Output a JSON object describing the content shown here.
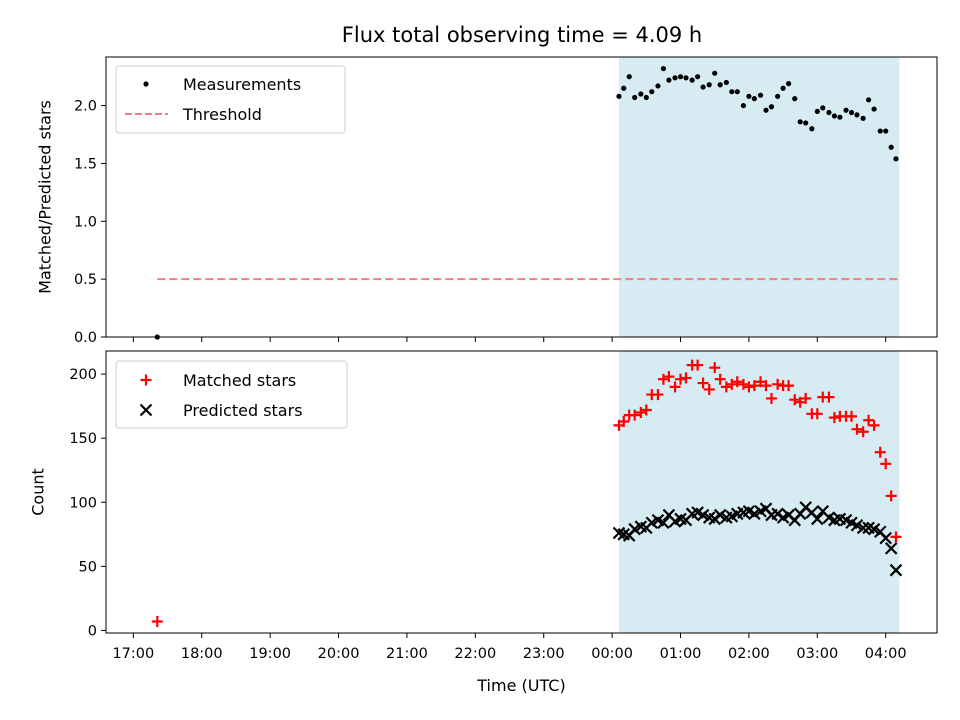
{
  "chart_data": [
    {
      "type": "scatter",
      "title": "Flux total observing time = 4.09 h",
      "xlabel": "",
      "ylabel": "Matched/Predicted stars",
      "ylim": [
        0,
        2.42
      ],
      "yticks": [
        0.0,
        0.5,
        1.0,
        1.5,
        2.0
      ],
      "ytick_labels": [
        "0.0",
        "0.5",
        "1.0",
        "1.5",
        "2.0"
      ],
      "legend_position": "top-left",
      "observing_window": [
        24.1,
        28.2
      ],
      "series": [
        {
          "name": "Measurements",
          "kind": "points",
          "color": "#000000",
          "x": [
            17.35,
            24.1,
            24.17,
            24.25,
            24.33,
            24.42,
            24.5,
            24.58,
            24.67,
            24.75,
            24.83,
            24.92,
            25.0,
            25.08,
            25.17,
            25.25,
            25.33,
            25.42,
            25.5,
            25.58,
            25.67,
            25.75,
            25.83,
            25.92,
            26.0,
            26.08,
            26.17,
            26.25,
            26.33,
            26.42,
            26.5,
            26.58,
            26.67,
            26.75,
            26.83,
            26.92,
            27.0,
            27.08,
            27.17,
            27.25,
            27.33,
            27.42,
            27.5,
            27.58,
            27.67,
            27.75,
            27.83,
            27.92,
            28.0,
            28.08,
            28.15
          ],
          "y": [
            0.0,
            2.08,
            2.15,
            2.25,
            2.07,
            2.1,
            2.07,
            2.12,
            2.17,
            2.32,
            2.22,
            2.24,
            2.25,
            2.24,
            2.22,
            2.25,
            2.16,
            2.18,
            2.28,
            2.18,
            2.2,
            2.12,
            2.12,
            2.0,
            2.08,
            2.06,
            2.09,
            1.96,
            1.99,
            2.08,
            2.15,
            2.19,
            2.06,
            1.86,
            1.85,
            1.8,
            1.95,
            1.98,
            1.94,
            1.91,
            1.9,
            1.96,
            1.94,
            1.92,
            1.89,
            2.05,
            1.97,
            1.78,
            1.78,
            1.64,
            1.54
          ]
        },
        {
          "name": "Threshold",
          "kind": "dashed-line",
          "color": "#f08080",
          "x": [
            17.35,
            28.2
          ],
          "y": [
            0.5,
            0.5
          ]
        }
      ]
    },
    {
      "type": "scatter",
      "title": "",
      "xlabel": "Time (UTC)",
      "ylabel": "Count",
      "ylim": [
        -2,
        218
      ],
      "yticks": [
        0,
        50,
        100,
        150,
        200
      ],
      "ytick_labels": [
        "0",
        "50",
        "100",
        "150",
        "200"
      ],
      "xlim": [
        16.6,
        28.75
      ],
      "xticks": [
        17,
        18,
        19,
        20,
        21,
        22,
        23,
        24,
        25,
        26,
        27,
        28
      ],
      "xtick_labels": [
        "17:00",
        "18:00",
        "19:00",
        "20:00",
        "21:00",
        "22:00",
        "23:00",
        "00:00",
        "01:00",
        "02:00",
        "03:00",
        "04:00"
      ],
      "legend_position": "top-left",
      "observing_window": [
        24.1,
        28.2
      ],
      "series": [
        {
          "name": "Matched stars",
          "kind": "plus",
          "color": "#ff0000",
          "x": [
            17.35,
            24.1,
            24.17,
            24.25,
            24.33,
            24.42,
            24.5,
            24.58,
            24.67,
            24.75,
            24.83,
            24.92,
            25.0,
            25.08,
            25.17,
            25.25,
            25.33,
            25.42,
            25.5,
            25.58,
            25.67,
            25.75,
            25.83,
            25.92,
            26.0,
            26.08,
            26.17,
            26.25,
            26.33,
            26.42,
            26.5,
            26.58,
            26.67,
            26.75,
            26.83,
            26.92,
            27.0,
            27.08,
            27.17,
            27.25,
            27.33,
            27.42,
            27.5,
            27.58,
            27.67,
            27.75,
            27.83,
            27.92,
            28.0,
            28.08,
            28.15
          ],
          "y": [
            7,
            160,
            163,
            168,
            168,
            170,
            172,
            184,
            184,
            196,
            198,
            190,
            196,
            197,
            207,
            207,
            193,
            188,
            205,
            196,
            190,
            192,
            194,
            192,
            190,
            191,
            194,
            191,
            181,
            192,
            191,
            191,
            180,
            178,
            181,
            169,
            169,
            182,
            182,
            166,
            167,
            167,
            167,
            157,
            155,
            164,
            160,
            139,
            130,
            105,
            73
          ]
        },
        {
          "name": "Predicted stars",
          "kind": "cross",
          "color": "#000000",
          "x": [
            24.1,
            24.17,
            24.25,
            24.33,
            24.42,
            24.5,
            24.58,
            24.67,
            24.75,
            24.83,
            24.92,
            25.0,
            25.08,
            25.17,
            25.25,
            25.33,
            25.42,
            25.5,
            25.58,
            25.67,
            25.75,
            25.83,
            25.92,
            26.0,
            26.08,
            26.17,
            26.25,
            26.33,
            26.42,
            26.5,
            26.58,
            26.67,
            26.75,
            26.83,
            26.92,
            27.0,
            27.08,
            27.17,
            27.25,
            27.33,
            27.42,
            27.5,
            27.58,
            27.67,
            27.75,
            27.83,
            27.92,
            28.0,
            28.08,
            28.15
          ],
          "y": [
            76,
            75,
            74,
            79,
            81,
            80,
            84,
            86,
            84,
            90,
            85,
            87,
            86,
            91,
            92,
            90,
            88,
            87,
            90,
            88,
            89,
            91,
            92,
            93,
            91,
            93,
            95,
            90,
            91,
            88,
            90,
            86,
            91,
            96,
            92,
            87,
            93,
            88,
            86,
            87,
            86,
            84,
            82,
            80,
            80,
            79,
            77,
            72,
            64,
            47
          ]
        }
      ]
    }
  ]
}
